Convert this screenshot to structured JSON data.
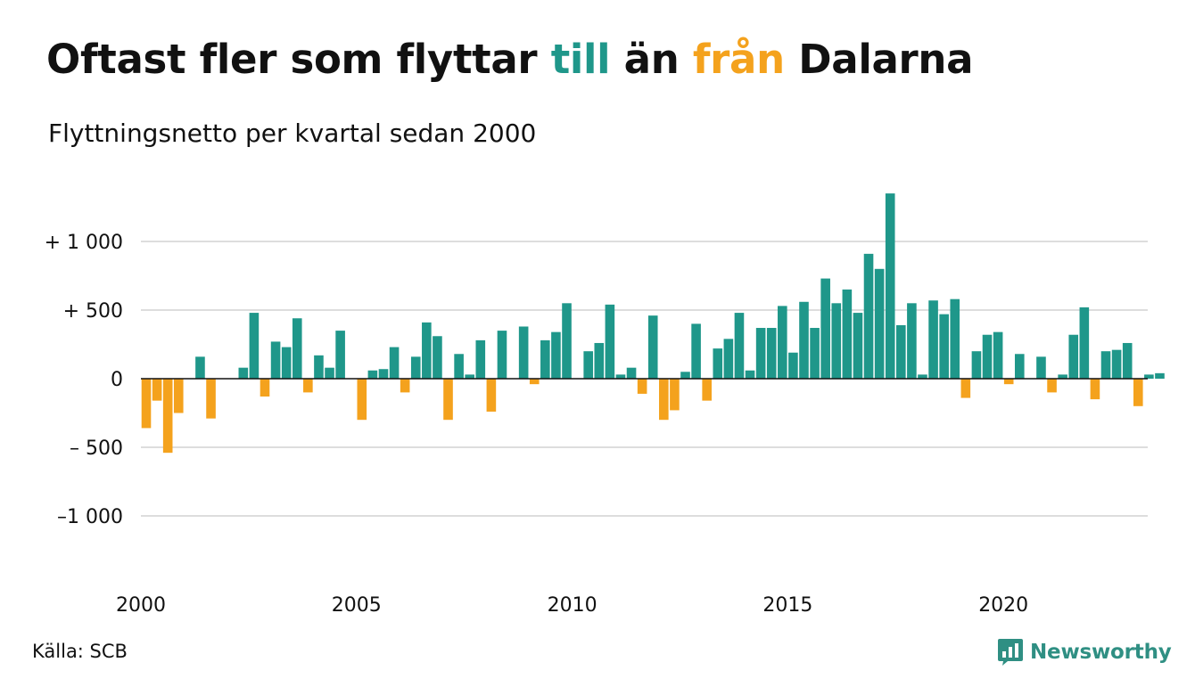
{
  "title": {
    "part1": "Oftast fler som flyttar ",
    "part2": "till",
    "part3": " än ",
    "part4": "från",
    "part5": " Dalarna"
  },
  "subtitle": "Flyttningsnetto per kvartal sedan 2000",
  "source": "Källa: SCB",
  "brand": {
    "name": "Newsworthy",
    "icon": "newsworthy-logo-icon"
  },
  "colors": {
    "positive": "#1f978a",
    "negative": "#f4a21d",
    "grid": "#dddddd",
    "brand": "#2f8f83"
  },
  "chart_data": {
    "type": "bar",
    "title": "Oftast fler som flyttar till än från Dalarna",
    "subtitle": "Flyttningsnetto per kvartal sedan 2000",
    "x_start": "2000 Q1",
    "x_ticks": [
      "2000",
      "2005",
      "2010",
      "2015",
      "2020"
    ],
    "y_ticks": [
      {
        "value": 1000,
        "label": "+ 1 000"
      },
      {
        "value": 500,
        "label": "+   500"
      },
      {
        "value": 0,
        "label": "0"
      },
      {
        "value": -500,
        "label": "–  500"
      },
      {
        "value": -1000,
        "label": "–1 000"
      }
    ],
    "ylim": [
      -1400,
      1400
    ],
    "grid": true,
    "series": [
      {
        "values": [
          -360,
          -160,
          -540,
          -250,
          0,
          160,
          -290,
          0,
          0,
          80,
          480,
          -130,
          270,
          230,
          440,
          -100,
          170,
          80,
          350,
          0,
          -300,
          60,
          70,
          230,
          -100,
          160,
          410,
          310,
          -300,
          180,
          30,
          280,
          -240,
          350,
          0,
          380,
          -40,
          280,
          340,
          550,
          0,
          200,
          260,
          540,
          30,
          80,
          -110,
          460,
          -300,
          -230,
          50,
          400,
          -160,
          220,
          290,
          480,
          60,
          370,
          370,
          530,
          190,
          560,
          370,
          730,
          550,
          650,
          480,
          910,
          800,
          1350,
          390,
          550,
          30,
          570,
          470,
          580,
          -140,
          200,
          320,
          340,
          -40,
          180,
          0,
          160,
          -100,
          30,
          320,
          520,
          -150,
          200,
          210,
          260,
          -200,
          30,
          40
        ]
      }
    ]
  }
}
